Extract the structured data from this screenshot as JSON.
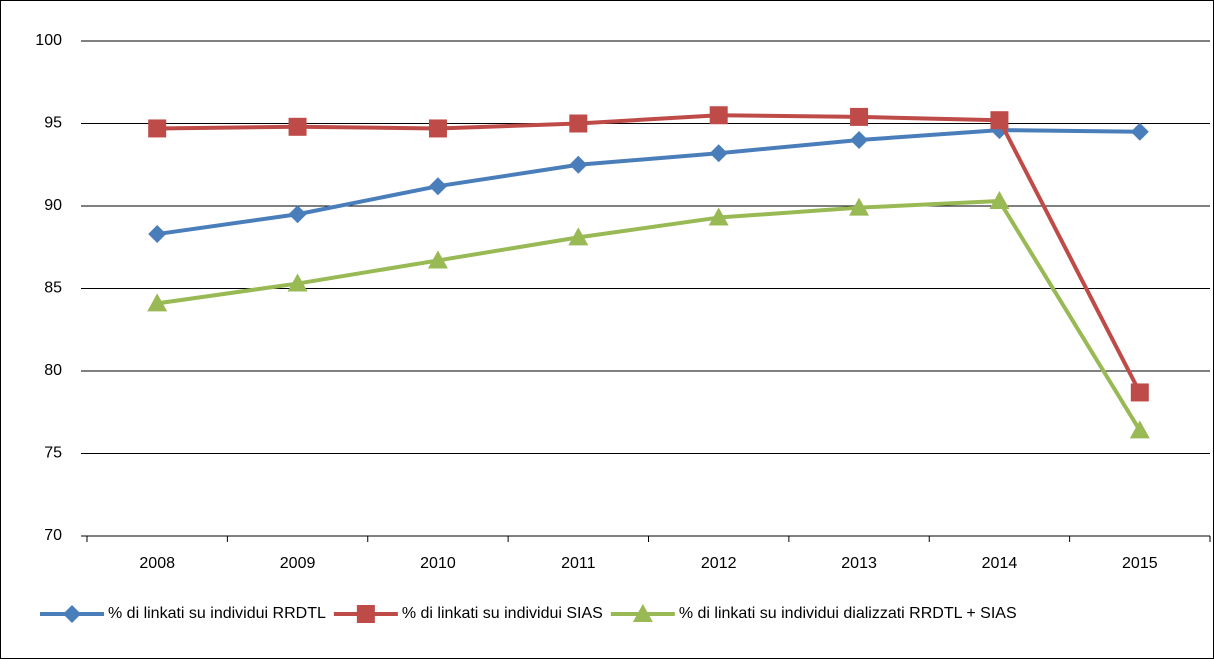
{
  "chart_data": {
    "type": "line",
    "categories": [
      "2008",
      "2009",
      "2010",
      "2011",
      "2012",
      "2013",
      "2014",
      "2015"
    ],
    "series": [
      {
        "name": "% di linkati su individui RRDTL",
        "color": "#4a7ebb",
        "marker": "diamond",
        "values": [
          88.3,
          89.5,
          91.2,
          92.5,
          93.2,
          94.0,
          94.6,
          94.5
        ]
      },
      {
        "name": "% di linkati su individui SIAS",
        "color": "#be4b48",
        "marker": "square",
        "values": [
          94.7,
          94.8,
          94.7,
          95.0,
          95.5,
          95.4,
          95.2,
          78.7
        ]
      },
      {
        "name": "% di linkati su individui dializzati RRDTL + SIAS",
        "color": "#98b954",
        "marker": "triangle",
        "values": [
          84.1,
          85.3,
          86.7,
          88.1,
          89.3,
          89.9,
          90.3,
          76.4
        ]
      }
    ],
    "ylim": [
      70,
      100
    ],
    "yticks": [
      70,
      75,
      80,
      85,
      90,
      95,
      100
    ],
    "grid": true,
    "legend": "bottom"
  }
}
